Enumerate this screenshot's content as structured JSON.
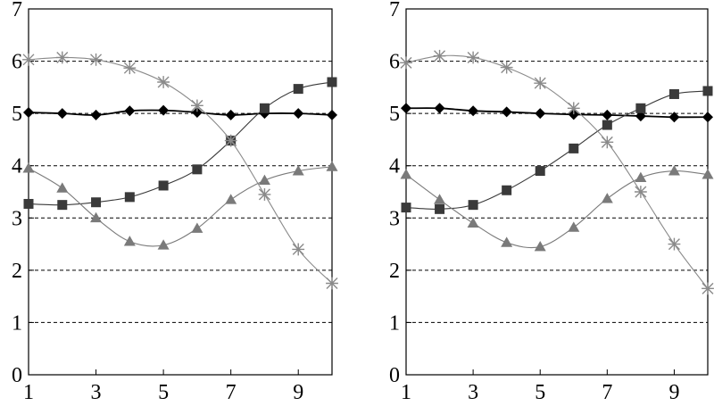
{
  "chart_data": [
    {
      "type": "line",
      "title": "",
      "xlabel": "",
      "ylabel": "",
      "xlim": [
        1,
        10
      ],
      "ylim": [
        0,
        7
      ],
      "xticks": [
        1,
        3,
        5,
        7,
        9
      ],
      "yticks": [
        0,
        1,
        2,
        3,
        4,
        5,
        6,
        7
      ],
      "grid": "horizontal dashed",
      "legend": "none",
      "series": [
        {
          "marker": "diamond",
          "color": "#000000",
          "x": [
            1,
            2,
            3,
            4,
            5,
            6,
            7,
            8,
            9,
            10
          ],
          "values": [
            5.02,
            5.0,
            4.97,
            5.05,
            5.06,
            5.02,
            4.97,
            5.0,
            5.0,
            4.97
          ]
        },
        {
          "marker": "square",
          "color": "#3a3a3a",
          "x": [
            1,
            2,
            3,
            4,
            5,
            6,
            7,
            8,
            9,
            10
          ],
          "values": [
            3.27,
            3.25,
            3.3,
            3.4,
            3.62,
            3.93,
            4.48,
            5.1,
            5.47,
            5.6
          ]
        },
        {
          "marker": "triangle",
          "color": "#7a7a7a",
          "x": [
            1,
            2,
            3,
            4,
            5,
            6,
            7,
            8,
            9,
            10
          ],
          "values": [
            3.95,
            3.57,
            3.0,
            2.55,
            2.48,
            2.8,
            3.35,
            3.72,
            3.9,
            3.98
          ]
        },
        {
          "marker": "star",
          "color": "#8a8a8a",
          "x": [
            1,
            2,
            3,
            4,
            5,
            6,
            7,
            8,
            9,
            10
          ],
          "values": [
            6.03,
            6.07,
            6.03,
            5.87,
            5.6,
            5.15,
            4.48,
            3.45,
            2.4,
            1.75
          ]
        }
      ]
    },
    {
      "type": "line",
      "title": "",
      "xlabel": "",
      "ylabel": "",
      "xlim": [
        1,
        10
      ],
      "ylim": [
        0,
        7
      ],
      "xticks": [
        1,
        3,
        5,
        7,
        9
      ],
      "yticks": [
        0,
        1,
        2,
        3,
        4,
        5,
        6,
        7
      ],
      "grid": "horizontal dashed",
      "legend": "none",
      "series": [
        {
          "marker": "diamond",
          "color": "#000000",
          "x": [
            1,
            2,
            3,
            4,
            5,
            6,
            7,
            8,
            9,
            10
          ],
          "values": [
            5.1,
            5.1,
            5.05,
            5.03,
            5.0,
            4.98,
            4.97,
            4.95,
            4.93,
            4.93
          ]
        },
        {
          "marker": "square",
          "color": "#3a3a3a",
          "x": [
            1,
            2,
            3,
            4,
            5,
            6,
            7,
            8,
            9,
            10
          ],
          "values": [
            3.2,
            3.17,
            3.25,
            3.53,
            3.9,
            4.33,
            4.78,
            5.1,
            5.37,
            5.43
          ]
        },
        {
          "marker": "triangle",
          "color": "#7a7a7a",
          "x": [
            1,
            2,
            3,
            4,
            5,
            6,
            7,
            8,
            9,
            10
          ],
          "values": [
            3.83,
            3.35,
            2.9,
            2.53,
            2.45,
            2.82,
            3.37,
            3.77,
            3.9,
            3.83
          ]
        },
        {
          "marker": "star",
          "color": "#8a8a8a",
          "x": [
            1,
            2,
            3,
            4,
            5,
            6,
            7,
            8,
            9,
            10
          ],
          "values": [
            5.97,
            6.1,
            6.07,
            5.88,
            5.58,
            5.1,
            4.45,
            3.5,
            2.5,
            1.65
          ]
        }
      ]
    }
  ]
}
